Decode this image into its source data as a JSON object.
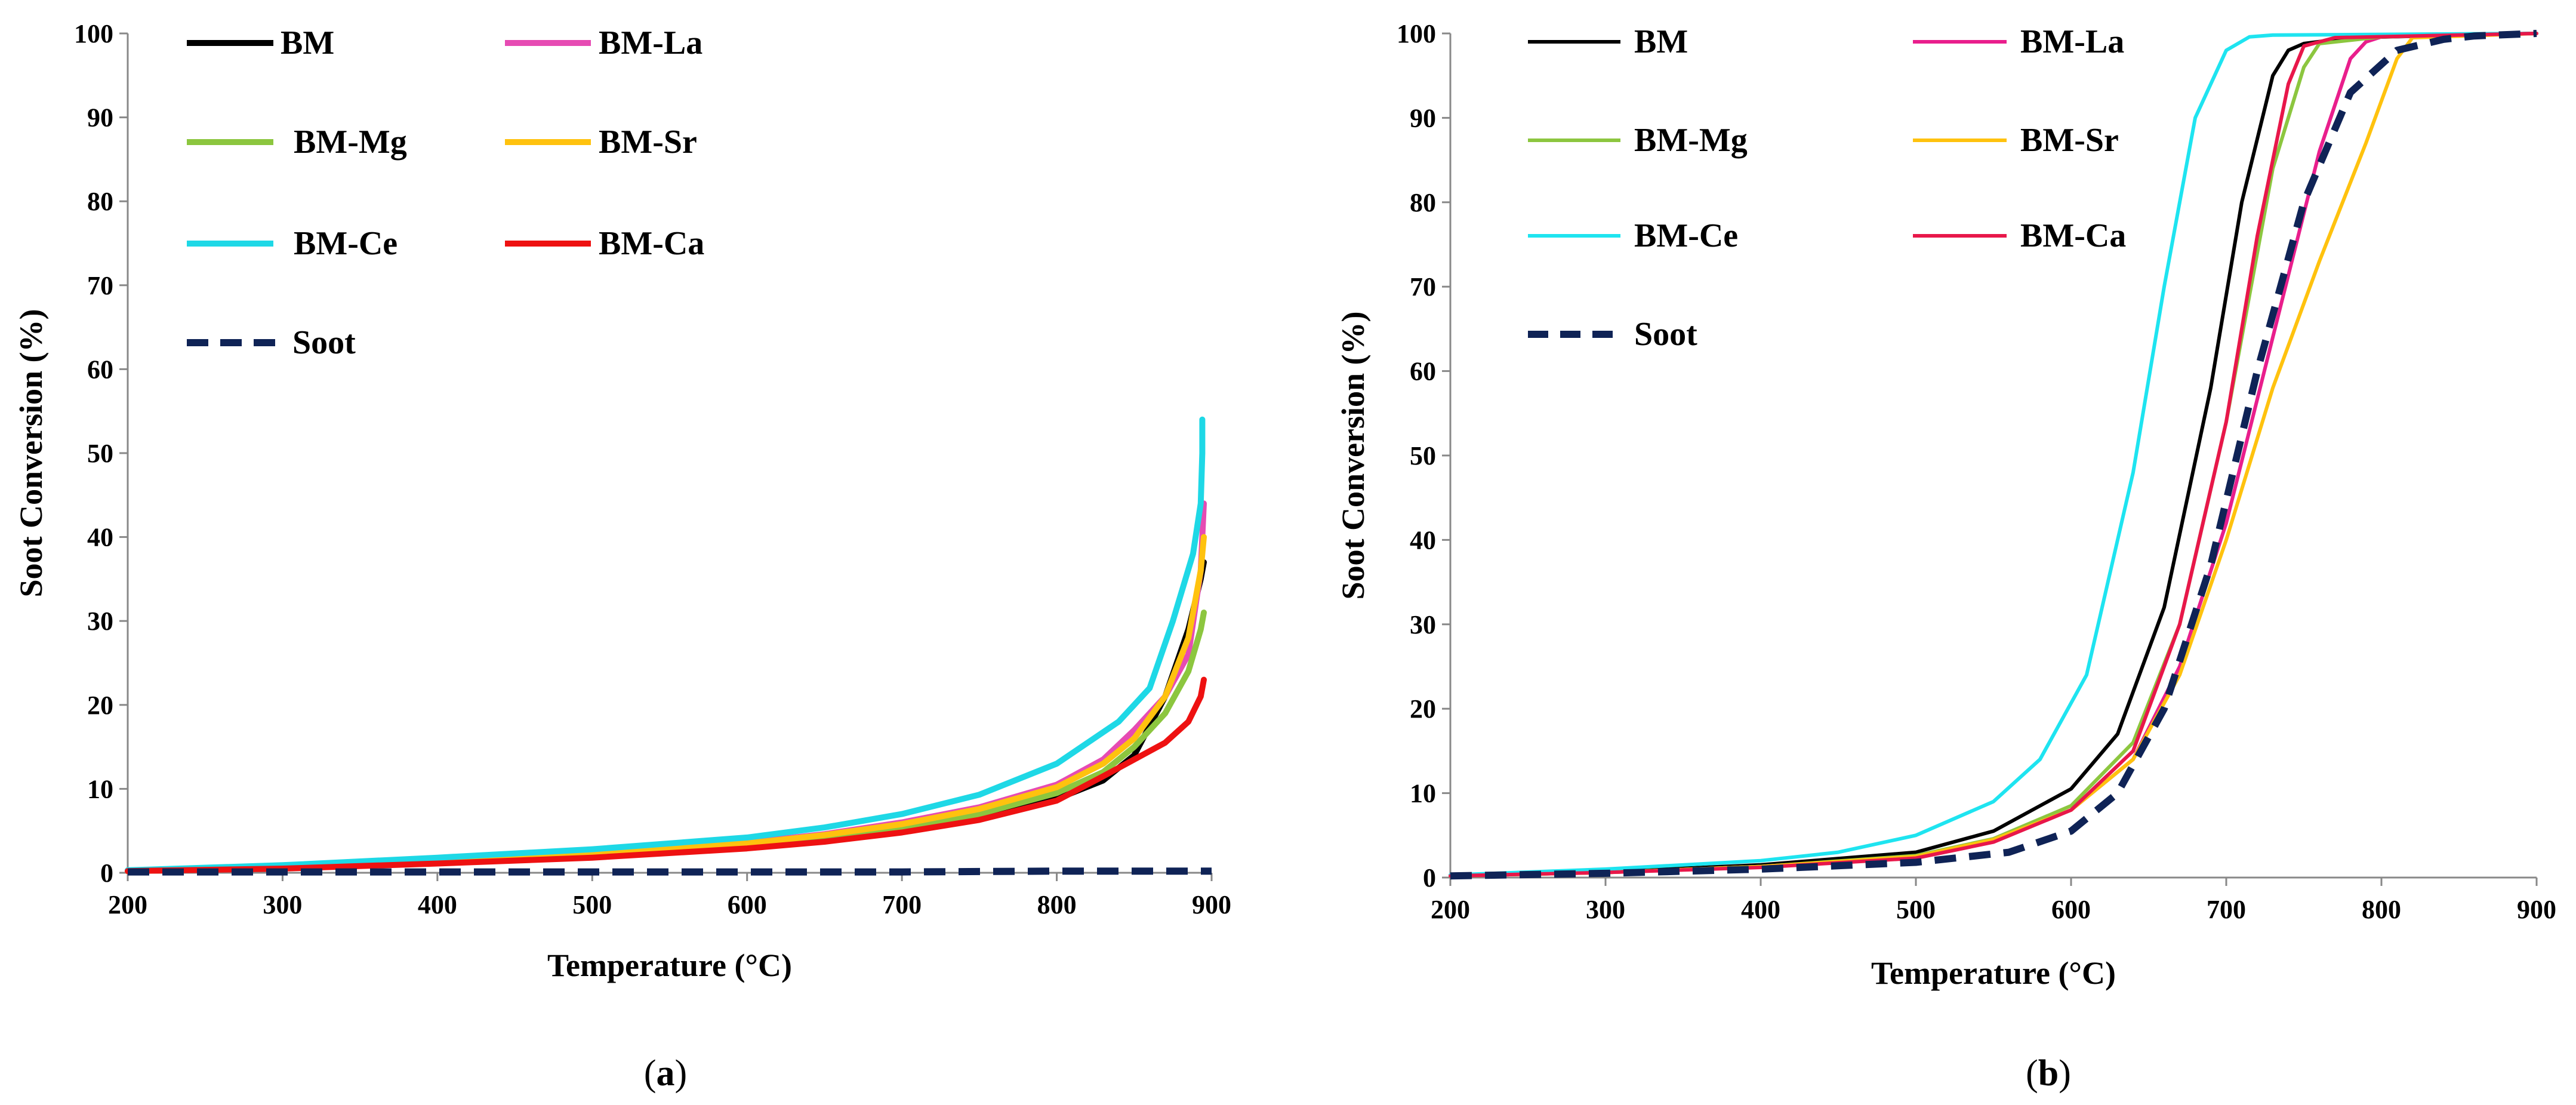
{
  "chart_data": [
    {
      "type": "line",
      "panel_label": "(a)",
      "panel_letter": "a",
      "xlabel": "Temperature (°C)",
      "ylabel": "Soot Conversion  (%)",
      "xlim": [
        200,
        900
      ],
      "ylim": [
        0,
        100
      ],
      "xticks": [
        200,
        300,
        400,
        500,
        600,
        700,
        800,
        900
      ],
      "yticks": [
        0,
        10,
        20,
        30,
        40,
        50,
        60,
        70,
        80,
        90,
        100
      ],
      "grid": false,
      "legend_position": "top-left",
      "series": [
        {
          "name": "BM",
          "color": "#000000",
          "dash": false,
          "x": [
            200,
            300,
            400,
            500,
            600,
            650,
            700,
            750,
            800,
            830,
            850,
            870,
            885,
            893,
            895
          ],
          "y": [
            0.2,
            0.6,
            1.2,
            2.0,
            3.2,
            4.0,
            5.2,
            6.5,
            8.8,
            11,
            14,
            21,
            29,
            35,
            37
          ]
        },
        {
          "name": "BM-La",
          "color": "#e64bb3",
          "dash": false,
          "x": [
            200,
            300,
            400,
            500,
            600,
            650,
            700,
            750,
            800,
            830,
            850,
            870,
            885,
            893,
            895
          ],
          "y": [
            0.2,
            0.7,
            1.4,
            2.3,
            3.6,
            4.6,
            6.0,
            7.8,
            10.5,
            13.5,
            17,
            21,
            26,
            36,
            44
          ]
        },
        {
          "name": "BM-Mg",
          "color": "#8cc63f",
          "dash": false,
          "x": [
            200,
            300,
            400,
            500,
            600,
            650,
            700,
            750,
            800,
            830,
            850,
            870,
            885,
            893,
            895
          ],
          "y": [
            0.2,
            0.6,
            1.3,
            2.1,
            3.3,
            4.2,
            5.4,
            7.0,
            9.5,
            12,
            15,
            19,
            24,
            29,
            31
          ]
        },
        {
          "name": "BM-Sr",
          "color": "#ffc20e",
          "dash": false,
          "x": [
            200,
            300,
            400,
            500,
            600,
            650,
            700,
            750,
            800,
            830,
            850,
            870,
            885,
            893,
            895
          ],
          "y": [
            0.2,
            0.7,
            1.4,
            2.3,
            3.5,
            4.5,
            5.8,
            7.6,
            10.2,
            13,
            16,
            21,
            28,
            36,
            40
          ]
        },
        {
          "name": "BM-Ce",
          "color": "#1ed8e6",
          "dash": false,
          "x": [
            200,
            300,
            400,
            500,
            600,
            650,
            700,
            750,
            800,
            840,
            860,
            875,
            888,
            893,
            894,
            894
          ],
          "y": [
            0.3,
            0.9,
            1.8,
            2.8,
            4.2,
            5.4,
            7.0,
            9.3,
            13.0,
            18,
            22,
            30,
            38,
            44,
            50,
            54
          ]
        },
        {
          "name": "BM-Ca",
          "color": "#ee1111",
          "dash": false,
          "x": [
            200,
            300,
            400,
            500,
            600,
            650,
            700,
            750,
            800,
            830,
            850,
            870,
            885,
            893,
            895
          ],
          "y": [
            0.2,
            0.5,
            1.1,
            1.8,
            2.9,
            3.7,
            4.8,
            6.3,
            8.6,
            11.5,
            13.5,
            15.5,
            18,
            21,
            23
          ]
        },
        {
          "name": "Soot",
          "color": "#0f2356",
          "dash": true,
          "x": [
            200,
            300,
            400,
            500,
            600,
            700,
            800,
            900
          ],
          "y": [
            0.1,
            0.1,
            0.1,
            0.1,
            0.1,
            0.1,
            0.2,
            0.2
          ]
        }
      ]
    },
    {
      "type": "line",
      "panel_label": "(b)",
      "panel_letter": "b",
      "xlabel": "Temperature (°C)",
      "ylabel": "Soot Conversion (%)",
      "xlim": [
        200,
        900
      ],
      "ylim": [
        0,
        100
      ],
      "xticks": [
        200,
        300,
        400,
        500,
        600,
        700,
        800,
        900
      ],
      "yticks": [
        0,
        10,
        20,
        30,
        40,
        50,
        60,
        70,
        80,
        90,
        100
      ],
      "grid": false,
      "legend_position": "top-left",
      "series": [
        {
          "name": "BM",
          "color": "#000000",
          "dash": false,
          "x": [
            200,
            300,
            400,
            500,
            550,
            600,
            630,
            660,
            690,
            710,
            730,
            740,
            750,
            780,
            900
          ],
          "y": [
            0.3,
            0.7,
            1.5,
            3.0,
            5.5,
            10.5,
            17,
            32,
            58,
            80,
            95,
            98,
            98.8,
            99.5,
            100
          ]
        },
        {
          "name": "BM-La",
          "color": "#e91e8c",
          "dash": false,
          "x": [
            200,
            300,
            400,
            500,
            550,
            600,
            640,
            670,
            700,
            730,
            760,
            780,
            790,
            800,
            900
          ],
          "y": [
            0.2,
            0.6,
            1.3,
            2.5,
            4.5,
            8.0,
            14,
            25,
            42,
            64,
            86,
            97,
            99,
            99.6,
            100
          ]
        },
        {
          "name": "BM-Mg",
          "color": "#8cc63f",
          "dash": false,
          "x": [
            200,
            300,
            400,
            500,
            550,
            600,
            640,
            670,
            700,
            730,
            750,
            760,
            800,
            900
          ],
          "y": [
            0.2,
            0.6,
            1.3,
            2.6,
            4.6,
            8.5,
            16,
            30,
            54,
            84,
            96,
            98.8,
            99.6,
            100
          ]
        },
        {
          "name": "BM-Sr",
          "color": "#ffc20e",
          "dash": false,
          "x": [
            200,
            300,
            400,
            500,
            550,
            600,
            640,
            670,
            700,
            730,
            760,
            790,
            810,
            820,
            900
          ],
          "y": [
            0.2,
            0.6,
            1.3,
            2.5,
            4.5,
            8.0,
            14,
            24,
            40,
            58,
            73,
            87,
            97,
            99.5,
            100
          ]
        },
        {
          "name": "BM-Ce",
          "color": "#1ee4f0",
          "dash": false,
          "x": [
            200,
            300,
            400,
            450,
            500,
            550,
            580,
            610,
            640,
            660,
            680,
            700,
            715,
            730,
            900
          ],
          "y": [
            0.3,
            1.0,
            2.0,
            3.0,
            5.0,
            9.0,
            14,
            24,
            48,
            70,
            90,
            98,
            99.6,
            99.8,
            100
          ]
        },
        {
          "name": "BM-Ca",
          "color": "#e8174a",
          "dash": false,
          "x": [
            200,
            300,
            400,
            500,
            550,
            600,
            640,
            670,
            700,
            720,
            740,
            750,
            770,
            900
          ],
          "y": [
            0.2,
            0.6,
            1.2,
            2.3,
            4.2,
            8.0,
            15,
            30,
            54,
            76,
            94,
            98.5,
            99.5,
            100
          ]
        },
        {
          "name": "Soot",
          "color": "#0f2356",
          "dash": true,
          "x": [
            200,
            300,
            400,
            500,
            560,
            600,
            630,
            660,
            690,
            720,
            750,
            780,
            810,
            840,
            860,
            900
          ],
          "y": [
            0.2,
            0.5,
            1.0,
            1.8,
            3.0,
            5.5,
            10,
            20,
            37,
            60,
            80,
            93,
            98,
            99.3,
            99.7,
            100
          ]
        }
      ]
    }
  ]
}
